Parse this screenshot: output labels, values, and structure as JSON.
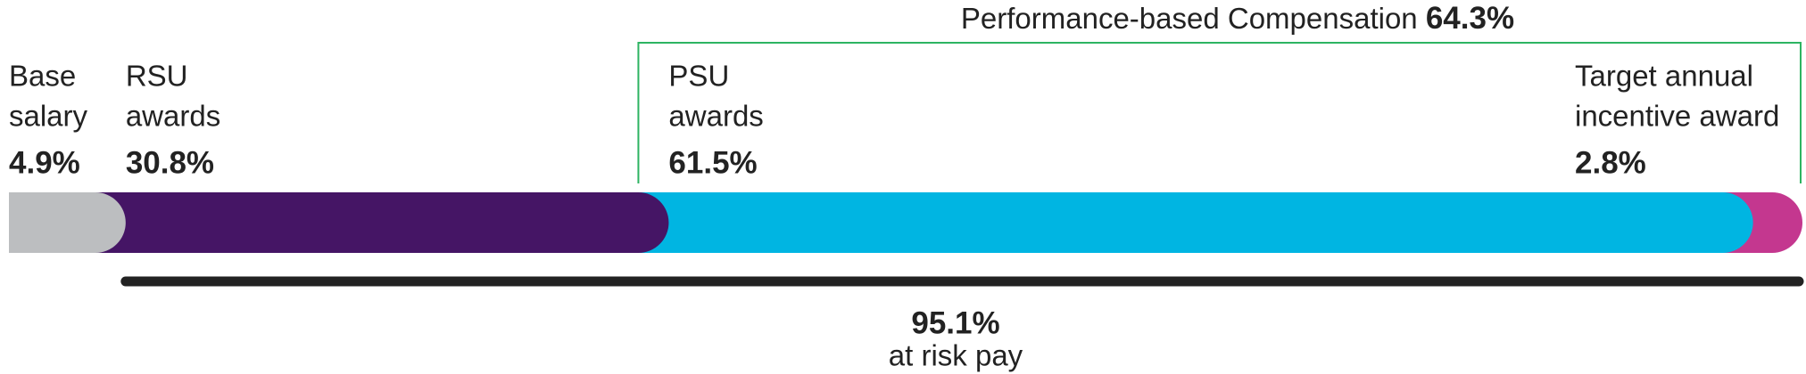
{
  "chart_data": {
    "type": "stacked-bar",
    "categories": [
      [
        "Base",
        "salary"
      ],
      [
        "RSU",
        "awards"
      ],
      [
        "PSU",
        "awards"
      ],
      [
        "Target annual",
        "incentive award"
      ]
    ],
    "values": [
      4.9,
      30.8,
      61.5,
      2.8
    ],
    "value_labels": [
      "4.9%",
      "30.8%",
      "61.5%",
      "2.8%"
    ],
    "colors": [
      "#bcbec0",
      "#451565",
      "#00b5e2",
      "#c4378f"
    ],
    "xlim": [
      0,
      100
    ],
    "annotations": [
      {
        "text": "Performance-based Compensation",
        "value": 64.3,
        "value_label": "64.3%",
        "color": "#2db462"
      },
      {
        "text": "at risk pay",
        "value": 95.1,
        "value_label": "95.1%",
        "color": "#222222"
      }
    ]
  }
}
